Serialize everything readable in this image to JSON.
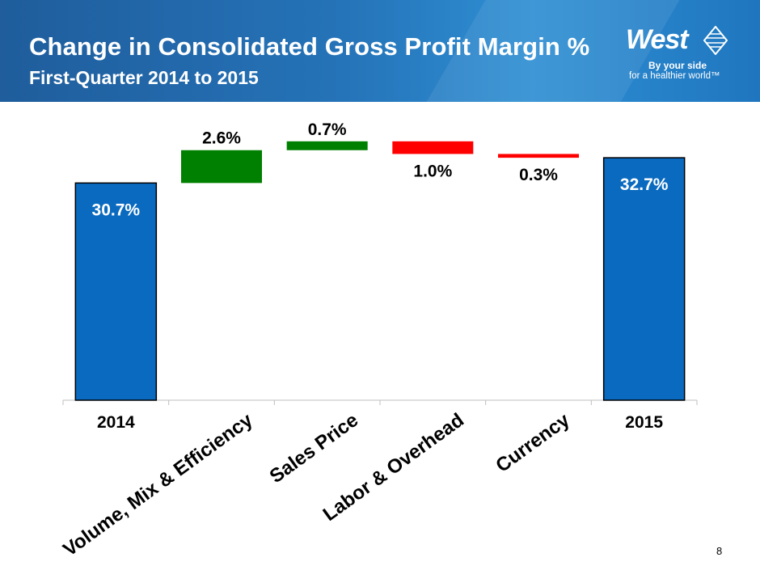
{
  "header": {
    "title": "Change in Consolidated Gross Profit Margin %",
    "subtitle": "First-Quarter 2014 to 2015"
  },
  "logo": {
    "word": "West",
    "tagline_line1": "By your side",
    "tagline_line2": "for a healthier world™"
  },
  "page_number": "8",
  "colors": {
    "total_bar": "#0a6abf",
    "increase_bar": "#008000",
    "decrease_bar": "#ff0000",
    "header_blue": "#2573b8"
  },
  "chart_data": {
    "type": "waterfall",
    "title": "Change in Consolidated Gross Profit Margin %",
    "categories": [
      "2014",
      "Volume, Mix & Efficiency",
      "Sales Price",
      "Labor & Overhead",
      "Currency",
      "2015"
    ],
    "values": [
      30.7,
      2.6,
      0.7,
      -1.0,
      -0.3,
      32.7
    ],
    "kinds": [
      "total",
      "increase",
      "increase",
      "decrease",
      "decrease",
      "total"
    ],
    "data_labels": [
      "30.7%",
      "2.6%",
      "0.7%",
      "1.0%",
      "0.3%",
      "32.7%"
    ],
    "ylim": [
      13.5,
      34.5
    ],
    "grid": false,
    "legend": "none",
    "xlabel": "",
    "ylabel": ""
  }
}
